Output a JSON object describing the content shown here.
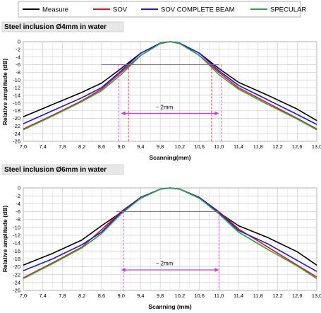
{
  "legend": [
    {
      "name": "Measure",
      "color": "#000000"
    },
    {
      "name": "SOV",
      "color": "#e8141c"
    },
    {
      "name": "SOV COMPLETE BEAM",
      "color": "#1a1adc"
    },
    {
      "name": "SPECULAR",
      "color": "#2aa640"
    }
  ],
  "chart_data": [
    {
      "type": "line",
      "title": "Steel inclusion Ø4mm in water",
      "xlabel": "Scanning(mm)",
      "ylabel": "Relative amplitude (dB)",
      "xlim": [
        7.0,
        13.0
      ],
      "ylim": [
        -26,
        0
      ],
      "x_ticks": [
        "7,0",
        "7,4",
        "7,8",
        "8,2",
        "8,6",
        "9,0",
        "9,4",
        "9,8",
        "10,2",
        "10,6",
        "11,0",
        "11,4",
        "11,8",
        "12,2",
        "12,6",
        "13,0"
      ],
      "y_ticks": [
        "0",
        "-2",
        "-4",
        "-6",
        "-8",
        "-10",
        "-12",
        "-14",
        "-16",
        "-18",
        "-20",
        "-22",
        "-24",
        "-26"
      ],
      "grid": true,
      "annotation": "~ 2mm",
      "series": [
        {
          "name": "Measure",
          "color": "#000000",
          "x": [
            7.0,
            7.6,
            8.2,
            8.6,
            9.0,
            9.4,
            9.8,
            10.0,
            10.2,
            10.6,
            11.0,
            11.4,
            12.0,
            12.6,
            13.0
          ],
          "y": [
            -19.6,
            -16.4,
            -13.2,
            -10.8,
            -7.0,
            -3.0,
            -0.4,
            0.0,
            -0.4,
            -3.0,
            -7.0,
            -10.6,
            -14.0,
            -17.6,
            -20.6
          ]
        },
        {
          "name": "SOV",
          "color": "#e8141c",
          "x": [
            7.0,
            7.6,
            8.2,
            8.6,
            9.0,
            9.4,
            9.8,
            10.0,
            10.2,
            10.6,
            11.0,
            11.4,
            12.0,
            12.6,
            13.0
          ],
          "y": [
            -22.8,
            -19.2,
            -15.4,
            -12.4,
            -8.0,
            -3.6,
            -0.5,
            0.0,
            -0.5,
            -3.6,
            -8.0,
            -12.0,
            -16.0,
            -20.0,
            -22.8
          ]
        },
        {
          "name": "SOV COMPLETE BEAM",
          "color": "#1a1adc",
          "x": [
            7.0,
            7.6,
            8.2,
            8.6,
            9.0,
            9.4,
            9.8,
            10.0,
            10.2,
            10.6,
            11.0,
            11.4,
            12.0,
            12.6,
            13.0
          ],
          "y": [
            -21.4,
            -18.0,
            -14.6,
            -12.0,
            -7.6,
            -3.0,
            -0.4,
            0.0,
            -0.4,
            -3.0,
            -7.6,
            -11.4,
            -15.2,
            -19.0,
            -21.6
          ]
        },
        {
          "name": "SPECULAR",
          "color": "#2aa640",
          "x": [
            7.0,
            7.6,
            8.2,
            8.6,
            9.0,
            9.4,
            9.8,
            10.0,
            10.2,
            10.6,
            11.0,
            11.4,
            12.0,
            12.6,
            13.0
          ],
          "y": [
            -23.0,
            -19.4,
            -15.6,
            -12.8,
            -8.6,
            -3.6,
            -0.5,
            0.0,
            -0.5,
            -3.6,
            -8.6,
            -12.4,
            -16.4,
            -20.2,
            -23.0
          ]
        }
      ]
    },
    {
      "type": "line",
      "title": "Steel inclusion Ø6mm in water",
      "xlabel": "Scanning (mm)",
      "ylabel": "Relative amplitude (dB)",
      "xlim": [
        7.0,
        13.0
      ],
      "ylim": [
        -26,
        0
      ],
      "x_ticks": [
        "7,0",
        "7,4",
        "7,8",
        "8,2",
        "8,6",
        "9,0",
        "9,4",
        "9,8",
        "10,2",
        "10,6",
        "11,0",
        "11,4",
        "11,8",
        "12,2",
        "12,6",
        "13,0"
      ],
      "y_ticks": [
        "0",
        "-2",
        "-4",
        "-6",
        "-8",
        "-10",
        "-12",
        "-14",
        "-16",
        "-18",
        "-20",
        "-22",
        "-24",
        "-26"
      ],
      "grid": true,
      "annotation": "~ 2mm",
      "series": [
        {
          "name": "Measure",
          "color": "#000000",
          "x": [
            7.0,
            7.6,
            8.2,
            8.6,
            9.0,
            9.4,
            9.8,
            10.0,
            10.2,
            10.6,
            11.0,
            11.4,
            12.0,
            12.6,
            13.0
          ],
          "y": [
            -19.6,
            -16.6,
            -13.2,
            -9.6,
            -6.2,
            -2.6,
            -0.3,
            0.0,
            -0.3,
            -2.6,
            -6.2,
            -9.6,
            -12.6,
            -16.2,
            -19.6
          ]
        },
        {
          "name": "SOV",
          "color": "#e8141c",
          "x": [
            7.0,
            7.6,
            8.2,
            8.6,
            9.0,
            9.4,
            9.8,
            10.0,
            10.2,
            10.6,
            11.0,
            11.4,
            12.0,
            12.6,
            13.0
          ],
          "y": [
            -22.8,
            -19.0,
            -15.0,
            -10.6,
            -6.0,
            -2.4,
            -0.3,
            0.0,
            -0.3,
            -2.4,
            -6.0,
            -10.4,
            -15.0,
            -19.6,
            -22.6
          ]
        },
        {
          "name": "SOV COMPLETE BEAM",
          "color": "#1a1adc",
          "x": [
            7.0,
            7.6,
            8.2,
            8.6,
            9.0,
            9.4,
            9.8,
            10.0,
            10.2,
            10.6,
            11.0,
            11.4,
            12.0,
            12.6,
            13.0
          ],
          "y": [
            -21.0,
            -18.0,
            -14.4,
            -11.2,
            -6.2,
            -2.4,
            -0.3,
            0.0,
            -0.3,
            -2.4,
            -6.2,
            -10.8,
            -14.2,
            -18.4,
            -21.2
          ]
        },
        {
          "name": "SPECULAR",
          "color": "#2aa640",
          "x": [
            7.0,
            7.6,
            8.2,
            8.6,
            9.0,
            9.4,
            9.8,
            10.0,
            10.2,
            10.6,
            11.0,
            11.4,
            12.0,
            12.6,
            13.0
          ],
          "y": [
            -23.0,
            -19.2,
            -15.2,
            -11.6,
            -6.6,
            -2.6,
            -0.3,
            0.0,
            -0.3,
            -2.6,
            -6.6,
            -11.2,
            -15.6,
            -19.8,
            -23.0
          ]
        }
      ]
    }
  ]
}
